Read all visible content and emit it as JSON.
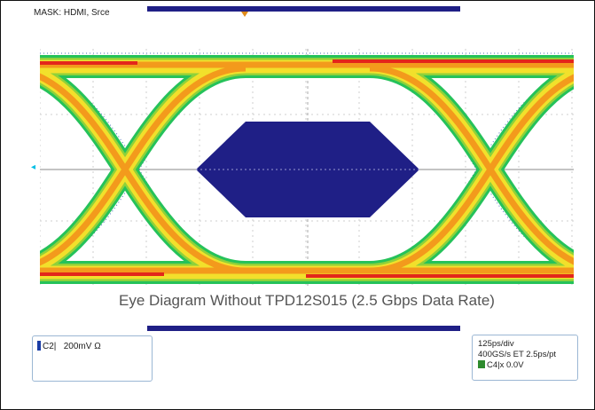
{
  "screen": {
    "mask_label": "MASK: HDMI, Srce",
    "caption": "Eye Diagram Without TPD12S015 (2.5 Gbps Data Rate)"
  },
  "colors": {
    "mask": "#1f1f86",
    "trace_hot": "#e3261b",
    "trace_warm": "#f39a1c",
    "trace_mid": "#f2e02b",
    "trace_cool": "#8fd13a",
    "trace_edge": "#25c25a",
    "trace_noise": "#1b4fa8",
    "marker": "#00bfe6"
  },
  "channel": {
    "name": "C2",
    "separator": "|",
    "scale": "200mV Ω"
  },
  "timebase": {
    "time_per_div": "125ps/div",
    "sampling": "400GS/s ET 2.5ps/pt",
    "trigger_channel": "C4",
    "trigger_level": "x 0.0V"
  }
}
